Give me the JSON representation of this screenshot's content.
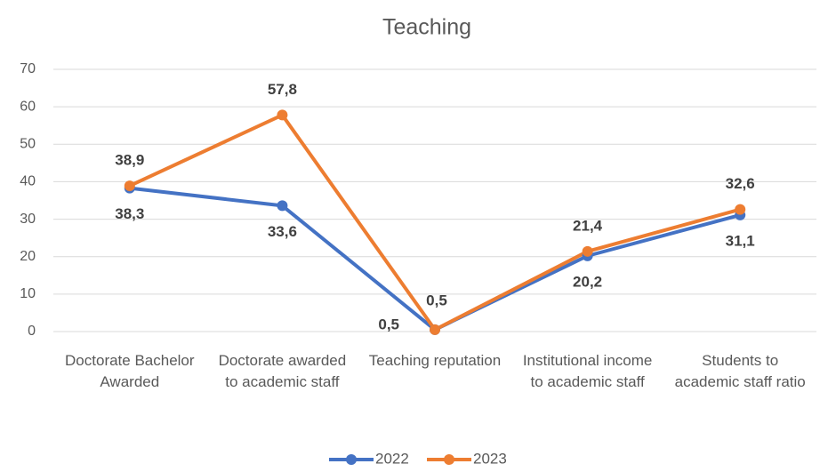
{
  "chart_data": {
    "type": "line",
    "title": "Teaching",
    "categories": [
      "Doctorate Bachelor Awarded",
      "Doctorate awarded to academic staff",
      "Teaching reputation",
      "Institutional income to academic staff",
      "Students to academic staff ratio"
    ],
    "series": [
      {
        "name": "2022",
        "color": "#4472c4",
        "values": [
          38.3,
          33.6,
          0.5,
          20.2,
          31.1
        ],
        "value_labels": [
          "38,3",
          "33,6",
          "0,5",
          "20,2",
          "31,1"
        ]
      },
      {
        "name": "2023",
        "color": "#ed7d31",
        "values": [
          38.9,
          57.8,
          0.5,
          21.4,
          32.6
        ],
        "value_labels": [
          "38,9",
          "57,8",
          "0,5",
          "21,4",
          "32,6"
        ]
      }
    ],
    "ylim": [
      0,
      70
    ],
    "yticks": [
      0,
      10,
      20,
      30,
      40,
      50,
      60,
      70
    ],
    "grid": true,
    "legend": "bottom"
  }
}
